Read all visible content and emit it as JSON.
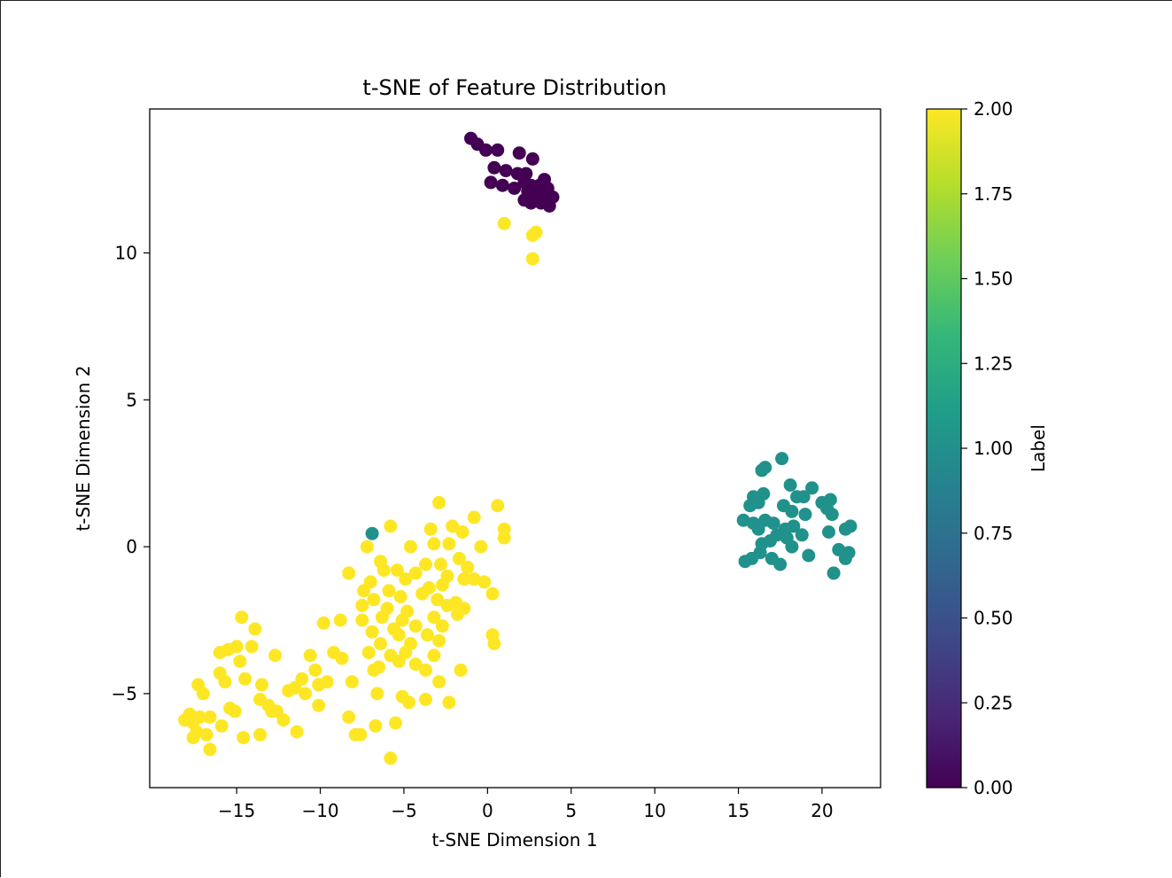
{
  "chart_data": {
    "type": "scatter",
    "title": "t-SNE of Feature Distribution",
    "xlabel": "t-SNE Dimension 1",
    "ylabel": "t-SNE Dimension 2",
    "xlim": [
      -20.2,
      23.5
    ],
    "ylim": [
      -8.2,
      14.9
    ],
    "xticks": [
      -15,
      -10,
      -5,
      0,
      5,
      10,
      15,
      20
    ],
    "xtick_labels": [
      "−15",
      "−10",
      "−5",
      "0",
      "5",
      "10",
      "15",
      "20"
    ],
    "yticks": [
      -5,
      0,
      5,
      10
    ],
    "ytick_labels": [
      "−5",
      "0",
      "5",
      "10"
    ],
    "colorbar": {
      "label": "Label",
      "range": [
        0,
        2
      ],
      "ticks": [
        0,
        0.25,
        0.5,
        0.75,
        1.0,
        1.25,
        1.5,
        1.75,
        2.0
      ],
      "tick_labels": [
        "0.00",
        "0.25",
        "0.50",
        "0.75",
        "1.00",
        "1.25",
        "1.50",
        "1.75",
        "2.00"
      ],
      "colormap": "viridis",
      "colors": [
        "#440154",
        "#482878",
        "#3e4989",
        "#31688e",
        "#26828e",
        "#1f9e89",
        "#35b779",
        "#6ece58",
        "#b5de2b",
        "#fde725"
      ]
    },
    "series": [
      {
        "name": "0",
        "label_value": 0,
        "color": "#440154",
        "points": [
          [
            -1.0,
            13.9
          ],
          [
            -0.6,
            13.7
          ],
          [
            -0.1,
            13.5
          ],
          [
            0.6,
            13.5
          ],
          [
            1.9,
            13.4
          ],
          [
            2.7,
            13.2
          ],
          [
            0.4,
            12.9
          ],
          [
            1.1,
            12.8
          ],
          [
            1.8,
            12.7
          ],
          [
            2.3,
            12.7
          ],
          [
            3.4,
            12.5
          ],
          [
            2.2,
            12.4
          ],
          [
            0.2,
            12.4
          ],
          [
            0.9,
            12.3
          ],
          [
            2.6,
            12.3
          ],
          [
            3.1,
            12.3
          ],
          [
            3.6,
            12.2
          ],
          [
            2.4,
            12.1
          ],
          [
            2.9,
            12.0
          ],
          [
            3.4,
            11.9
          ],
          [
            3.9,
            11.9
          ],
          [
            2.2,
            11.8
          ],
          [
            2.6,
            11.7
          ],
          [
            3.2,
            11.7
          ],
          [
            3.7,
            11.6
          ],
          [
            1.6,
            12.2
          ]
        ]
      },
      {
        "name": "1",
        "label_value": 1,
        "color": "#21918c",
        "points": [
          [
            17.6,
            3.0
          ],
          [
            16.6,
            2.7
          ],
          [
            16.4,
            2.6
          ],
          [
            18.1,
            2.1
          ],
          [
            19.4,
            2.0
          ],
          [
            16.5,
            1.8
          ],
          [
            15.9,
            1.7
          ],
          [
            18.5,
            1.7
          ],
          [
            18.9,
            1.7
          ],
          [
            20.5,
            1.6
          ],
          [
            16.2,
            1.5
          ],
          [
            20.0,
            1.5
          ],
          [
            15.7,
            1.4
          ],
          [
            17.7,
            1.4
          ],
          [
            20.3,
            1.3
          ],
          [
            18.2,
            1.2
          ],
          [
            19.0,
            1.1
          ],
          [
            20.6,
            1.1
          ],
          [
            16.6,
            0.9
          ],
          [
            15.3,
            0.9
          ],
          [
            17.1,
            0.8
          ],
          [
            15.9,
            0.8
          ],
          [
            21.7,
            0.7
          ],
          [
            18.3,
            0.7
          ],
          [
            21.4,
            0.6
          ],
          [
            16.2,
            0.6
          ],
          [
            17.8,
            0.6
          ],
          [
            20.4,
            0.5
          ],
          [
            17.3,
            0.4
          ],
          [
            18.8,
            0.4
          ],
          [
            17.9,
            0.3
          ],
          [
            16.9,
            0.2
          ],
          [
            16.4,
            0.1
          ],
          [
            18.2,
            0.0
          ],
          [
            21.0,
            -0.1
          ],
          [
            21.6,
            -0.2
          ],
          [
            16.3,
            -0.2
          ],
          [
            15.8,
            -0.4
          ],
          [
            19.2,
            -0.3
          ],
          [
            17.0,
            -0.4
          ],
          [
            21.4,
            -0.4
          ],
          [
            15.4,
            -0.5
          ],
          [
            17.5,
            -0.6
          ],
          [
            20.7,
            -0.9
          ],
          [
            -6.9,
            0.45
          ]
        ]
      },
      {
        "name": "2",
        "label_value": 2,
        "color": "#fde725",
        "points": [
          [
            1.0,
            11.0
          ],
          [
            2.9,
            10.7
          ],
          [
            2.7,
            10.6
          ],
          [
            2.7,
            9.8
          ],
          [
            -2.9,
            1.5
          ],
          [
            0.6,
            1.4
          ],
          [
            -5.8,
            0.7
          ],
          [
            -3.4,
            0.6
          ],
          [
            -2.1,
            0.7
          ],
          [
            -0.8,
            1.0
          ],
          [
            1.0,
            0.6
          ],
          [
            -1.5,
            0.5
          ],
          [
            1.0,
            0.3
          ],
          [
            -7.2,
            0.0
          ],
          [
            -4.6,
            0.0
          ],
          [
            -3.2,
            0.1
          ],
          [
            -2.3,
            0.1
          ],
          [
            -0.4,
            0.0
          ],
          [
            -1.7,
            -0.4
          ],
          [
            -6.4,
            -0.5
          ],
          [
            -3.7,
            -0.6
          ],
          [
            -5.4,
            -0.8
          ],
          [
            -2.8,
            -0.6
          ],
          [
            -1.2,
            -0.7
          ],
          [
            -8.3,
            -0.9
          ],
          [
            -6.2,
            -0.8
          ],
          [
            -4.3,
            -0.9
          ],
          [
            -2.4,
            -1.0
          ],
          [
            -1.4,
            -1.1
          ],
          [
            -0.8,
            -1.1
          ],
          [
            -7.0,
            -1.2
          ],
          [
            -4.9,
            -1.1
          ],
          [
            -3.5,
            -1.4
          ],
          [
            -2.7,
            -1.3
          ],
          [
            -0.2,
            -1.2
          ],
          [
            -7.4,
            -1.5
          ],
          [
            -5.9,
            -1.5
          ],
          [
            -3.9,
            -1.6
          ],
          [
            0.3,
            -1.6
          ],
          [
            -6.8,
            -1.8
          ],
          [
            -5.2,
            -1.7
          ],
          [
            -3.0,
            -1.8
          ],
          [
            -1.9,
            -1.9
          ],
          [
            -7.5,
            -2.0
          ],
          [
            -6.0,
            -2.1
          ],
          [
            -4.8,
            -2.2
          ],
          [
            -2.4,
            -2.0
          ],
          [
            -1.4,
            -2.1
          ],
          [
            -8.8,
            -2.5
          ],
          [
            -6.3,
            -2.4
          ],
          [
            -5.1,
            -2.5
          ],
          [
            -3.2,
            -2.4
          ],
          [
            -1.8,
            -2.3
          ],
          [
            -9.8,
            -2.6
          ],
          [
            -7.5,
            -2.5
          ],
          [
            -5.6,
            -2.8
          ],
          [
            -4.3,
            -2.7
          ],
          [
            -2.7,
            -2.7
          ],
          [
            -6.9,
            -2.9
          ],
          [
            -5.3,
            -3.0
          ],
          [
            -3.6,
            -3.0
          ],
          [
            0.3,
            -3.0
          ],
          [
            -6.4,
            -3.3
          ],
          [
            -4.6,
            -3.3
          ],
          [
            -2.9,
            -3.2
          ],
          [
            0.4,
            -3.3
          ],
          [
            -9.2,
            -3.6
          ],
          [
            -7.1,
            -3.6
          ],
          [
            -5.8,
            -3.7
          ],
          [
            -4.9,
            -3.6
          ],
          [
            -3.2,
            -3.7
          ],
          [
            -10.6,
            -3.7
          ],
          [
            -8.7,
            -3.8
          ],
          [
            -5.3,
            -3.9
          ],
          [
            -4.3,
            -4.0
          ],
          [
            -6.5,
            -4.1
          ],
          [
            -3.7,
            -4.2
          ],
          [
            -10.3,
            -4.2
          ],
          [
            -6.8,
            -4.2
          ],
          [
            -1.6,
            -4.2
          ],
          [
            -11.1,
            -4.5
          ],
          [
            -10.1,
            -4.7
          ],
          [
            -9.6,
            -4.6
          ],
          [
            -11.5,
            -4.8
          ],
          [
            -8.1,
            -4.6
          ],
          [
            -2.9,
            -4.6
          ],
          [
            -11.9,
            -4.9
          ],
          [
            -10.9,
            -5.0
          ],
          [
            -6.6,
            -5.0
          ],
          [
            -5.1,
            -5.1
          ],
          [
            -4.7,
            -5.3
          ],
          [
            -3.7,
            -5.2
          ],
          [
            -2.3,
            -5.3
          ],
          [
            -10.1,
            -5.4
          ],
          [
            -12.9,
            -5.6
          ],
          [
            -8.3,
            -5.8
          ],
          [
            -5.5,
            -6.0
          ],
          [
            -12.2,
            -5.9
          ],
          [
            -11.4,
            -6.3
          ],
          [
            -7.6,
            -6.4
          ],
          [
            -7.9,
            -6.4
          ],
          [
            -6.7,
            -6.1
          ],
          [
            -5.8,
            -7.2
          ],
          [
            -14.7,
            -2.4
          ],
          [
            -13.9,
            -2.8
          ],
          [
            -15.0,
            -3.4
          ],
          [
            -15.5,
            -3.5
          ],
          [
            -16.0,
            -3.6
          ],
          [
            -14.1,
            -3.4
          ],
          [
            -12.7,
            -3.7
          ],
          [
            -14.8,
            -3.9
          ],
          [
            -16.0,
            -4.3
          ],
          [
            -14.5,
            -4.5
          ],
          [
            -13.5,
            -4.7
          ],
          [
            -15.7,
            -4.6
          ],
          [
            -17.3,
            -4.7
          ],
          [
            -17.0,
            -5.0
          ],
          [
            -13.6,
            -5.2
          ],
          [
            -13.1,
            -5.4
          ],
          [
            -12.6,
            -5.6
          ],
          [
            -15.4,
            -5.5
          ],
          [
            -15.1,
            -5.6
          ],
          [
            -17.8,
            -5.7
          ],
          [
            -17.2,
            -5.8
          ],
          [
            -16.6,
            -5.8
          ],
          [
            -18.1,
            -5.9
          ],
          [
            -17.6,
            -6.0
          ],
          [
            -15.9,
            -6.1
          ],
          [
            -17.4,
            -6.3
          ],
          [
            -16.8,
            -6.4
          ],
          [
            -17.6,
            -6.5
          ],
          [
            -14.6,
            -6.5
          ],
          [
            -13.6,
            -6.4
          ],
          [
            -16.6,
            -6.9
          ]
        ]
      }
    ]
  }
}
